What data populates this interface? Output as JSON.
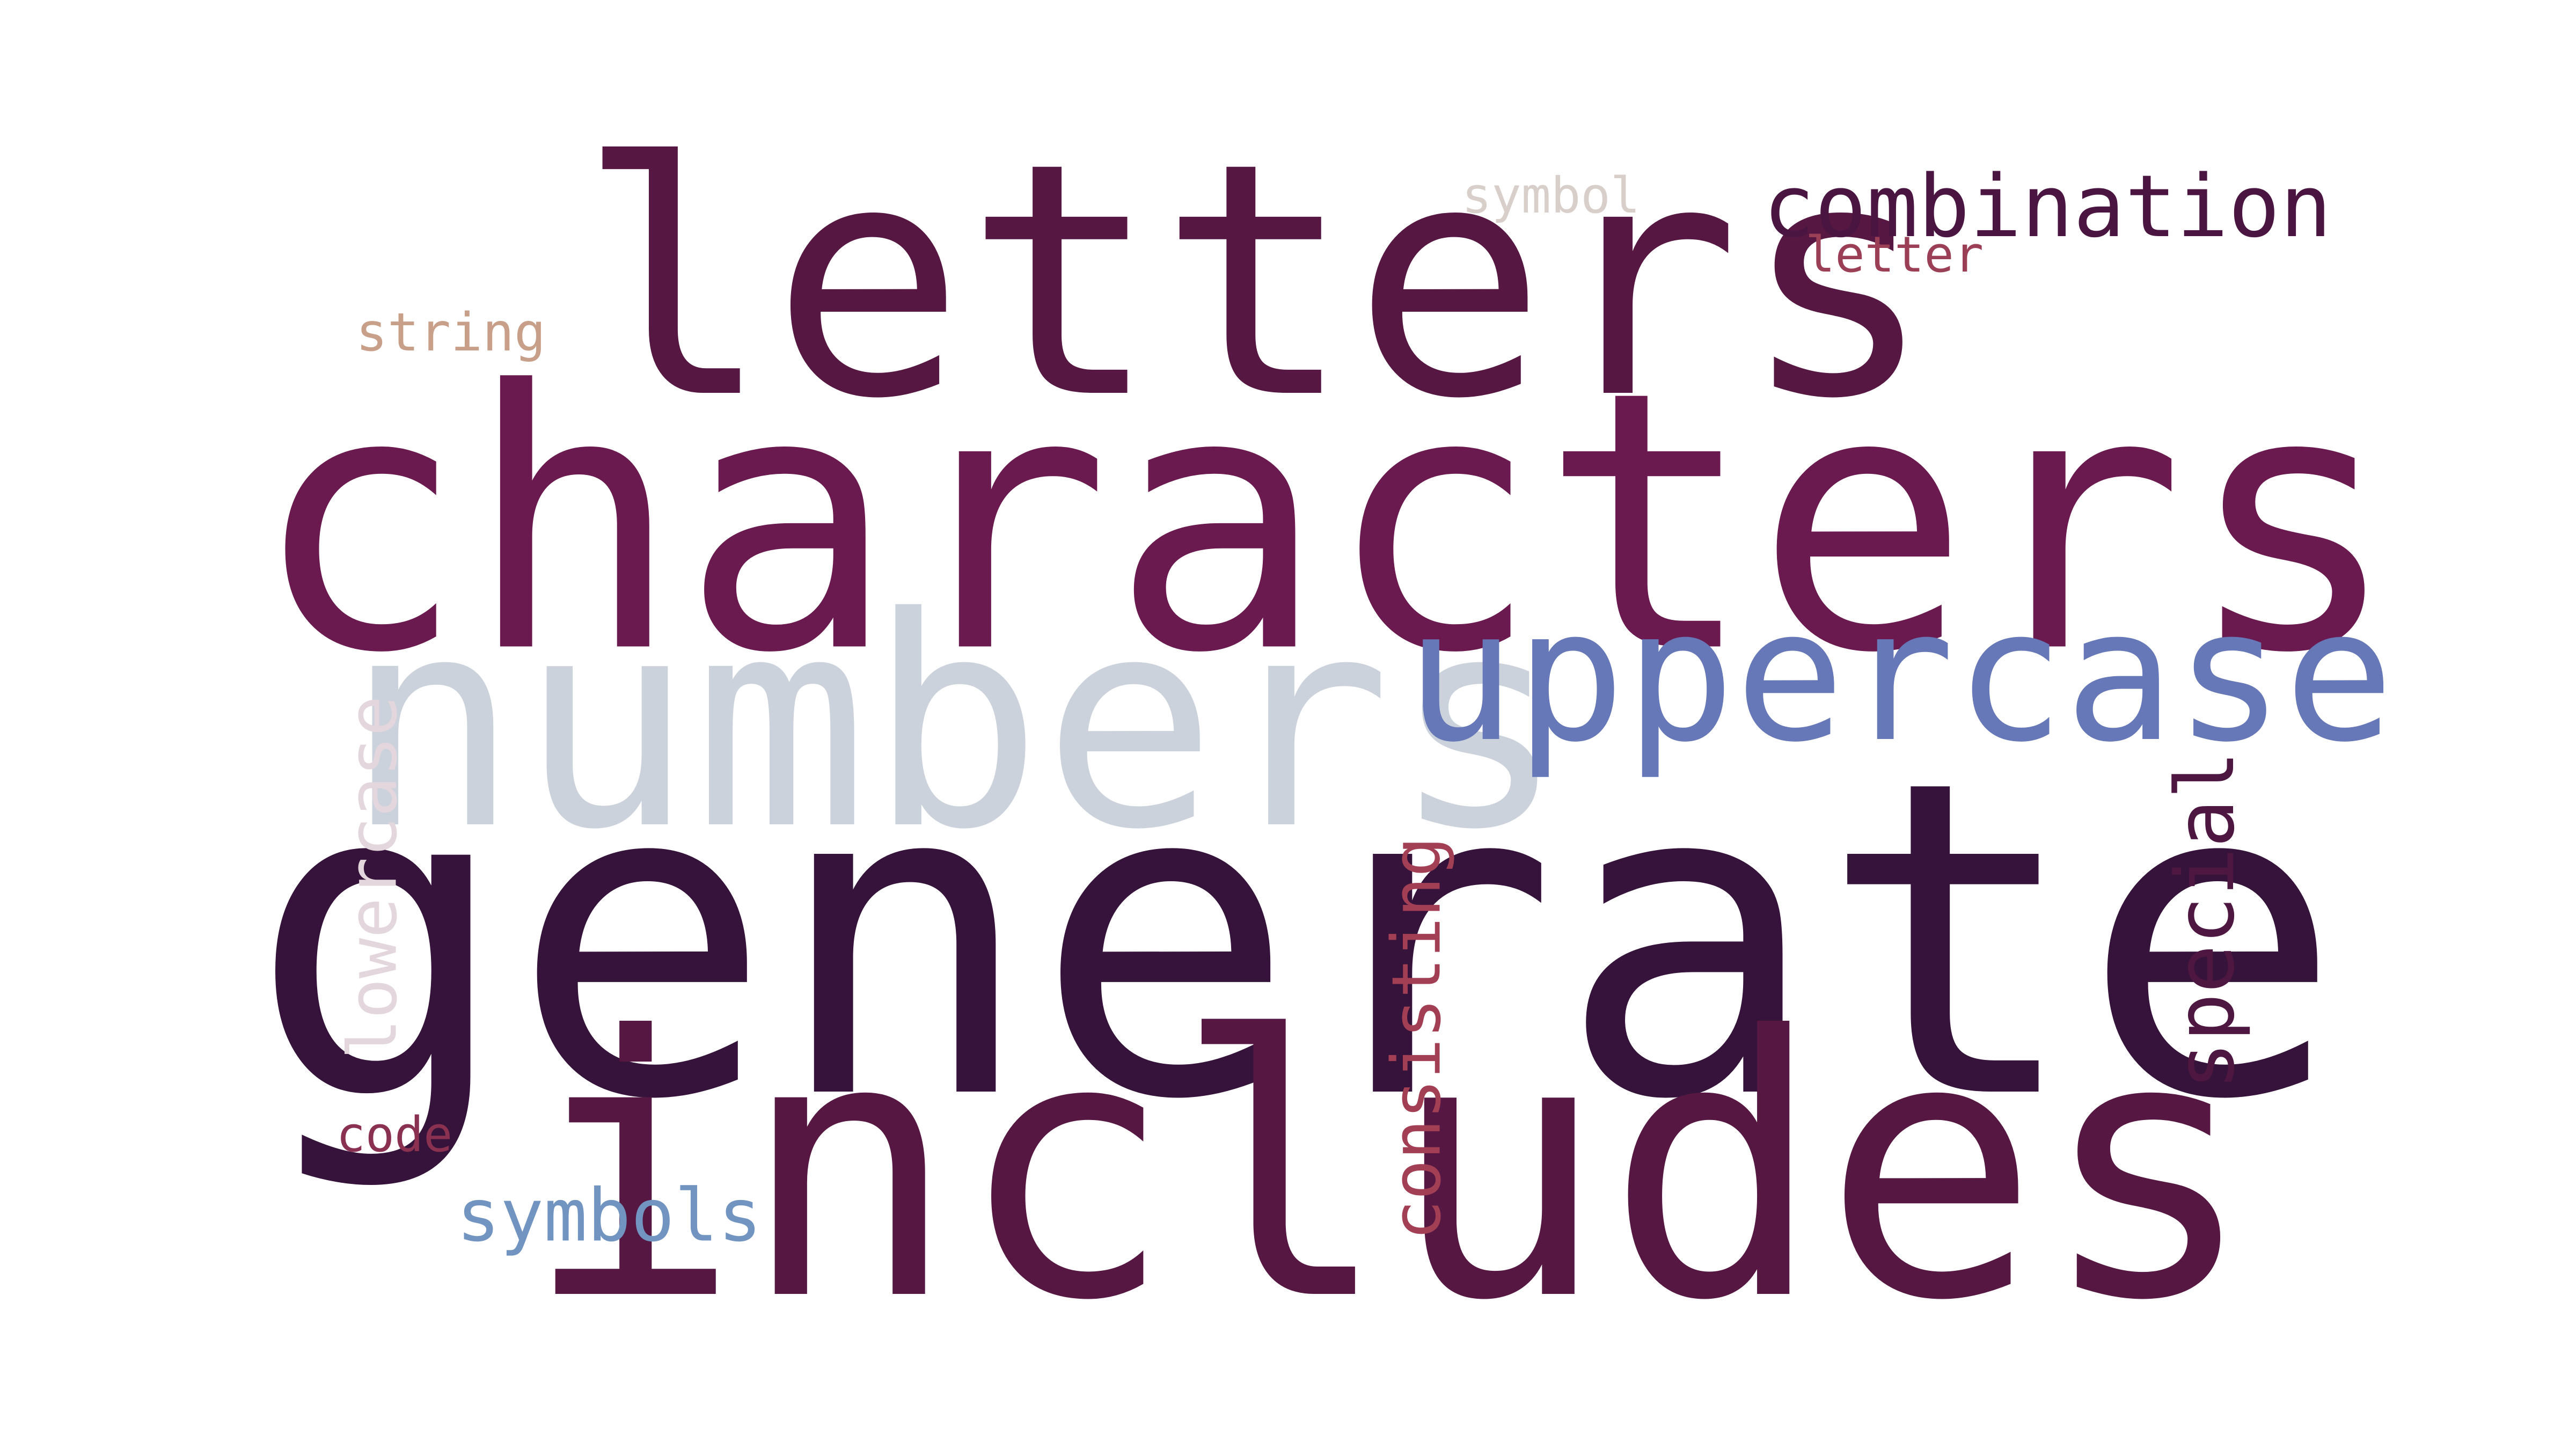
{
  "words": {
    "letters": {
      "text": "letters",
      "color": "#561843"
    },
    "characters": {
      "text": "characters",
      "color": "#6b1a4f"
    },
    "numbers": {
      "text": "numbers",
      "color": "#cbd2db"
    },
    "uppercase": {
      "text": "uppercase",
      "color": "#6678b7"
    },
    "generate": {
      "text": "generate",
      "color": "#35133a"
    },
    "includes": {
      "text": "includes",
      "color": "#561843"
    },
    "combination": {
      "text": "combination",
      "color": "#4a1540"
    },
    "symbol": {
      "text": "symbol",
      "color": "#d9cfca"
    },
    "letter": {
      "text": "letter",
      "color": "#9a3f56"
    },
    "string": {
      "text": "string",
      "color": "#c8a08a"
    },
    "lowercase": {
      "text": "lowercase",
      "color": "#e3d6dc"
    },
    "consisting": {
      "text": "consisting",
      "color": "#a23f55"
    },
    "special": {
      "text": "special",
      "color": "#4e1742"
    },
    "code": {
      "text": "code",
      "color": "#8a3050"
    },
    "symbols": {
      "text": "symbols",
      "color": "#7194c1"
    }
  }
}
